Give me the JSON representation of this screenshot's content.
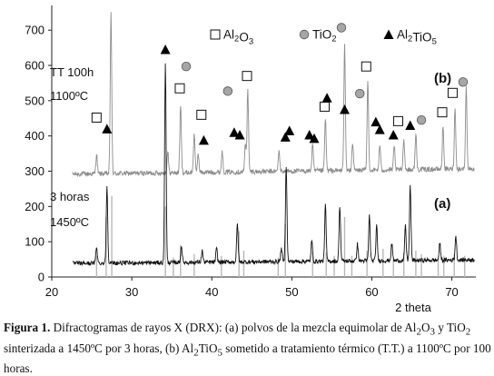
{
  "chart_data": {
    "type": "line",
    "xlabel": "2 theta",
    "xlim": [
      20,
      73
    ],
    "ylim": [
      0,
      770
    ],
    "x_ticks": [
      "20",
      "30",
      "40",
      "50",
      "60",
      "70"
    ],
    "y_ticks": [
      "0",
      "100",
      "200",
      "300",
      "400",
      "500",
      "600",
      "700"
    ],
    "legend": [
      {
        "symbol": "square",
        "label_base": "Al",
        "label_sub1": "2",
        "label_mid": "O",
        "label_sub2": "3"
      },
      {
        "symbol": "circle",
        "label_base": "TiO",
        "label_sub1": "2",
        "label_mid": "",
        "label_sub2": ""
      },
      {
        "symbol": "triangle",
        "label_base": "Al",
        "label_sub1": "2",
        "label_mid": "TiO",
        "label_sub2": "5"
      }
    ],
    "series": [
      {
        "name": "(b)",
        "note_lines": [
          "TT 100h",
          "1100ºC"
        ],
        "color": "#8c8c8c",
        "baseline": 300,
        "peaks": [
          {
            "x": 25.6,
            "y": 355
          },
          {
            "x": 27.4,
            "y": 760
          },
          {
            "x": 34.5,
            "y": 360
          },
          {
            "x": 36.1,
            "y": 490
          },
          {
            "x": 37.8,
            "y": 410
          },
          {
            "x": 38.3,
            "y": 355
          },
          {
            "x": 41.3,
            "y": 360
          },
          {
            "x": 44.2,
            "y": 380
          },
          {
            "x": 44.5,
            "y": 530
          },
          {
            "x": 48.4,
            "y": 360
          },
          {
            "x": 52.6,
            "y": 375
          },
          {
            "x": 54.2,
            "y": 450
          },
          {
            "x": 56.6,
            "y": 660
          },
          {
            "x": 57.6,
            "y": 380
          },
          {
            "x": 59.5,
            "y": 555
          },
          {
            "x": 61.0,
            "y": 370
          },
          {
            "x": 62.8,
            "y": 365
          },
          {
            "x": 64.0,
            "y": 390
          },
          {
            "x": 65.5,
            "y": 400
          },
          {
            "x": 68.9,
            "y": 420
          },
          {
            "x": 70.4,
            "y": 470
          },
          {
            "x": 71.8,
            "y": 530
          }
        ],
        "markers": [
          {
            "type": "square",
            "x": 25.6,
            "y": 452
          },
          {
            "type": "triangle",
            "x": 26.9,
            "y": 420
          },
          {
            "type": "triangle",
            "x": 34.2,
            "y": 645
          },
          {
            "type": "circle",
            "x": 36.8,
            "y": 597
          },
          {
            "type": "square",
            "x": 36.0,
            "y": 535
          },
          {
            "type": "square",
            "x": 38.7,
            "y": 460
          },
          {
            "type": "triangle",
            "x": 39.0,
            "y": 388
          },
          {
            "type": "circle",
            "x": 42.0,
            "y": 527
          },
          {
            "type": "triangle",
            "x": 42.8,
            "y": 410
          },
          {
            "type": "triangle",
            "x": 43.5,
            "y": 403
          },
          {
            "type": "square",
            "x": 44.4,
            "y": 570
          },
          {
            "type": "triangle",
            "x": 49.2,
            "y": 397
          },
          {
            "type": "triangle",
            "x": 49.7,
            "y": 415
          },
          {
            "type": "triangle",
            "x": 52.2,
            "y": 403
          },
          {
            "type": "triangle",
            "x": 52.8,
            "y": 393
          },
          {
            "type": "square",
            "x": 54.1,
            "y": 483
          },
          {
            "type": "triangle",
            "x": 54.4,
            "y": 508
          },
          {
            "type": "circle",
            "x": 56.2,
            "y": 707
          },
          {
            "type": "triangle",
            "x": 56.6,
            "y": 475
          },
          {
            "type": "circle",
            "x": 58.5,
            "y": 520
          },
          {
            "type": "square",
            "x": 59.3,
            "y": 597
          },
          {
            "type": "triangle",
            "x": 60.5,
            "y": 440
          },
          {
            "type": "triangle",
            "x": 61.0,
            "y": 418
          },
          {
            "type": "triangle",
            "x": 62.7,
            "y": 403
          },
          {
            "type": "square",
            "x": 63.3,
            "y": 442
          },
          {
            "type": "triangle",
            "x": 64.8,
            "y": 430
          },
          {
            "type": "circle",
            "x": 66.2,
            "y": 445
          },
          {
            "type": "square",
            "x": 68.8,
            "y": 467
          },
          {
            "type": "square",
            "x": 70.1,
            "y": 522
          },
          {
            "type": "circle",
            "x": 71.4,
            "y": 553
          }
        ]
      },
      {
        "name": "(a)",
        "note_lines": [
          "3 horas",
          "1450ºC"
        ],
        "color": "#111111",
        "baseline": 42,
        "peaks": [
          {
            "x": 25.6,
            "y": 90
          },
          {
            "x": 26.9,
            "y": 260
          },
          {
            "x": 34.2,
            "y": 610
          },
          {
            "x": 36.2,
            "y": 90
          },
          {
            "x": 38.8,
            "y": 75
          },
          {
            "x": 40.6,
            "y": 80
          },
          {
            "x": 43.2,
            "y": 150
          },
          {
            "x": 48.7,
            "y": 80
          },
          {
            "x": 49.3,
            "y": 315
          },
          {
            "x": 52.5,
            "y": 100
          },
          {
            "x": 54.2,
            "y": 200
          },
          {
            "x": 56.0,
            "y": 200
          },
          {
            "x": 58.2,
            "y": 90
          },
          {
            "x": 59.7,
            "y": 170
          },
          {
            "x": 60.6,
            "y": 140
          },
          {
            "x": 62.5,
            "y": 90
          },
          {
            "x": 64.2,
            "y": 140
          },
          {
            "x": 64.8,
            "y": 255
          },
          {
            "x": 68.5,
            "y": 90
          },
          {
            "x": 70.5,
            "y": 110
          }
        ],
        "reference_lines": [
          {
            "x": 25.6,
            "h": 60
          },
          {
            "x": 26.8,
            "h": 170
          },
          {
            "x": 27.5,
            "h": 230
          },
          {
            "x": 34.2,
            "h": 200
          },
          {
            "x": 35.2,
            "h": 55
          },
          {
            "x": 36.1,
            "h": 90
          },
          {
            "x": 37.8,
            "h": 65
          },
          {
            "x": 41.2,
            "h": 60
          },
          {
            "x": 43.4,
            "h": 130
          },
          {
            "x": 44.0,
            "h": 75
          },
          {
            "x": 48.3,
            "h": 55
          },
          {
            "x": 49.2,
            "h": 150
          },
          {
            "x": 52.6,
            "h": 70
          },
          {
            "x": 54.3,
            "h": 70
          },
          {
            "x": 55.3,
            "h": 60
          },
          {
            "x": 56.6,
            "h": 170
          },
          {
            "x": 57.5,
            "h": 60
          },
          {
            "x": 59.4,
            "h": 75
          },
          {
            "x": 61.4,
            "h": 80
          },
          {
            "x": 62.7,
            "h": 55
          },
          {
            "x": 64.0,
            "h": 70
          },
          {
            "x": 65.5,
            "h": 75
          },
          {
            "x": 66.2,
            "h": 65
          },
          {
            "x": 68.3,
            "h": 55
          },
          {
            "x": 69.0,
            "h": 60
          },
          {
            "x": 70.3,
            "h": 65
          },
          {
            "x": 71.6,
            "h": 60
          }
        ]
      }
    ]
  },
  "caption": {
    "label": "Figura 1.",
    "part1": " Difractogramas de rayos X (DRX): (a) polvos de la mezcla equimolar de Al",
    "sub1": "2",
    "part2": "O",
    "sub2": "3",
    "part3": " y TiO",
    "sub3": "2",
    "part4": " sinterizada a 1450ºC por 3 horas, (b) Al",
    "sub4": "2",
    "part5": "TiO",
    "sub5": "5",
    "part6": " sometido a tratamiento térmico (T.T.) a 1100ºC por 100 horas."
  }
}
